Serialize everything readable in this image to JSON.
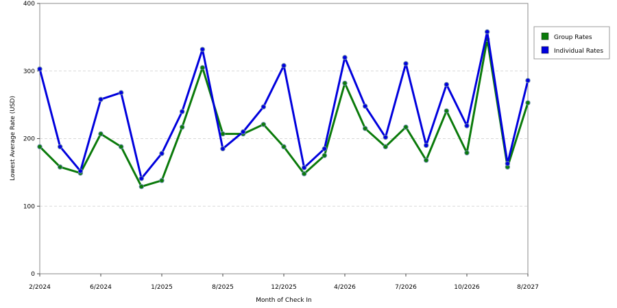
{
  "chart_data": {
    "type": "line",
    "title": "",
    "xlabel": "Month of Check In",
    "ylabel": "Lowest Average Rate (USD)",
    "ylim": [
      0,
      400
    ],
    "yticks": [
      "0",
      "100",
      "200",
      "300",
      "400"
    ],
    "x_tick_labels": [
      "2/2024",
      "6/2024",
      "1/2025",
      "8/2025",
      "12/2025",
      "4/2026",
      "7/2026",
      "10/2026",
      "8/2027"
    ],
    "grid": "horizontal dashed",
    "legend_position": "right",
    "series": [
      {
        "name": "Group Rates",
        "color": "#0a7a0a",
        "values": [
          188,
          158,
          149,
          207,
          188,
          129,
          138,
          217,
          305,
          207,
          207,
          221,
          188,
          148,
          175,
          282,
          215,
          188,
          217,
          168,
          241,
          179,
          347,
          158,
          253
        ]
      },
      {
        "name": "Individual Rates",
        "color": "#0000dd",
        "values": [
          303,
          188,
          152,
          258,
          268,
          141,
          178,
          240,
          332,
          185,
          210,
          247,
          308,
          157,
          185,
          320,
          248,
          202,
          311,
          190,
          280,
          219,
          358,
          163,
          286
        ]
      }
    ]
  }
}
